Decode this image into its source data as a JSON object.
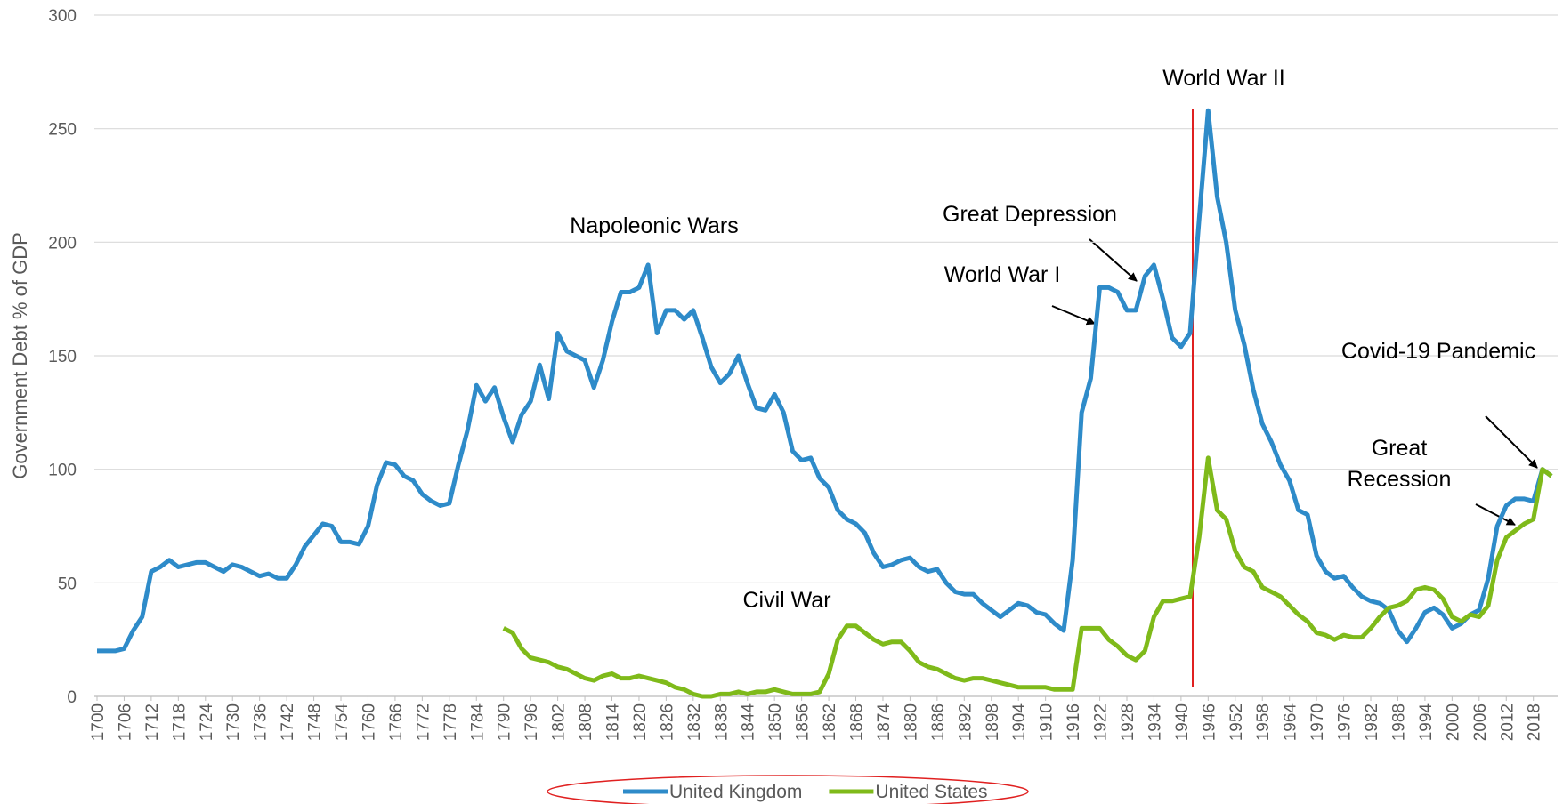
{
  "chart_data": {
    "type": "line",
    "ylabel": "Government Debt % of GDP",
    "x": [
      1700,
      1702,
      1704,
      1706,
      1708,
      1710,
      1712,
      1714,
      1716,
      1718,
      1720,
      1722,
      1724,
      1726,
      1728,
      1730,
      1732,
      1734,
      1736,
      1738,
      1740,
      1742,
      1744,
      1746,
      1748,
      1750,
      1752,
      1754,
      1756,
      1758,
      1760,
      1762,
      1764,
      1766,
      1768,
      1770,
      1772,
      1774,
      1776,
      1778,
      1780,
      1782,
      1784,
      1786,
      1788,
      1790,
      1792,
      1794,
      1796,
      1798,
      1800,
      1802,
      1804,
      1806,
      1808,
      1810,
      1812,
      1814,
      1816,
      1818,
      1820,
      1822,
      1824,
      1826,
      1828,
      1830,
      1832,
      1834,
      1836,
      1838,
      1840,
      1842,
      1844,
      1846,
      1848,
      1850,
      1852,
      1854,
      1856,
      1858,
      1860,
      1862,
      1864,
      1866,
      1868,
      1870,
      1872,
      1874,
      1876,
      1878,
      1880,
      1882,
      1884,
      1886,
      1888,
      1890,
      1892,
      1894,
      1896,
      1898,
      1900,
      1902,
      1904,
      1906,
      1908,
      1910,
      1912,
      1914,
      1916,
      1918,
      1920,
      1922,
      1924,
      1926,
      1928,
      1930,
      1932,
      1934,
      1936,
      1938,
      1940,
      1942,
      1944,
      1946,
      1948,
      1950,
      1952,
      1954,
      1956,
      1958,
      1960,
      1962,
      1964,
      1966,
      1968,
      1970,
      1972,
      1974,
      1976,
      1978,
      1980,
      1982,
      1984,
      1986,
      1988,
      1990,
      1992,
      1994,
      1996,
      1998,
      2000,
      2002,
      2004,
      2006,
      2008,
      2010,
      2012,
      2014,
      2016,
      2018,
      2020,
      2022
    ],
    "series": [
      {
        "name": "United Kingdom",
        "color": "#2e8bc9",
        "values": [
          20,
          20,
          20,
          21,
          29,
          35,
          55,
          57,
          60,
          57,
          58,
          59,
          59,
          57,
          55,
          58,
          57,
          55,
          53,
          54,
          52,
          52,
          58,
          66,
          71,
          76,
          75,
          68,
          68,
          67,
          75,
          93,
          103,
          102,
          97,
          95,
          89,
          86,
          84,
          85,
          102,
          117,
          137,
          130,
          136,
          123,
          112,
          124,
          130,
          146,
          131,
          160,
          152,
          150,
          148,
          136,
          148,
          165,
          178,
          178,
          180,
          190,
          160,
          170,
          170,
          166,
          170,
          158,
          145,
          138,
          142,
          150,
          138,
          127,
          126,
          133,
          125,
          108,
          104,
          105,
          96,
          92,
          82,
          78,
          76,
          72,
          63,
          57,
          58,
          60,
          61,
          57,
          55,
          56,
          50,
          46,
          45,
          45,
          41,
          38,
          35,
          38,
          41,
          40,
          37,
          36,
          32,
          29,
          60,
          125,
          140,
          180,
          180,
          178,
          170,
          170,
          185,
          190,
          175,
          158,
          154,
          160,
          210,
          258,
          220,
          200,
          170,
          155,
          135,
          120,
          112,
          102,
          95,
          82,
          80,
          62,
          55,
          52,
          53,
          48,
          44,
          42,
          41,
          38,
          29,
          24,
          30,
          37,
          39,
          36,
          30,
          32,
          36,
          38,
          52,
          75,
          84,
          87,
          87,
          86,
          100,
          97
        ]
      },
      {
        "name": "United States",
        "color": "#7fba1a",
        "values": [
          null,
          null,
          null,
          null,
          null,
          null,
          null,
          null,
          null,
          null,
          null,
          null,
          null,
          null,
          null,
          null,
          null,
          null,
          null,
          null,
          null,
          null,
          null,
          null,
          null,
          null,
          null,
          null,
          null,
          null,
          null,
          null,
          null,
          null,
          null,
          null,
          null,
          null,
          null,
          null,
          null,
          null,
          null,
          null,
          null,
          30,
          28,
          21,
          17,
          16,
          15,
          13,
          12,
          10,
          8,
          7,
          9,
          10,
          8,
          8,
          9,
          8,
          7,
          6,
          4,
          3,
          1,
          0,
          0,
          1,
          1,
          2,
          1,
          2,
          2,
          3,
          2,
          1,
          1,
          1,
          2,
          10,
          25,
          31,
          31,
          28,
          25,
          23,
          24,
          24,
          20,
          15,
          13,
          12,
          10,
          8,
          7,
          8,
          8,
          7,
          6,
          5,
          4,
          4,
          4,
          4,
          3,
          3,
          3,
          30,
          30,
          30,
          25,
          22,
          18,
          16,
          20,
          35,
          42,
          42,
          43,
          44,
          70,
          105,
          82,
          78,
          64,
          57,
          55,
          48,
          46,
          44,
          40,
          36,
          33,
          28,
          27,
          25,
          27,
          26,
          26,
          30,
          35,
          39,
          40,
          42,
          47,
          48,
          47,
          43,
          35,
          33,
          36,
          35,
          40,
          60,
          70,
          73,
          76,
          78,
          100,
          97
        ]
      }
    ],
    "xlim": [
      1700,
      2022
    ],
    "xticks": [
      1700,
      1706,
      1712,
      1718,
      1724,
      1730,
      1736,
      1742,
      1748,
      1754,
      1760,
      1766,
      1772,
      1778,
      1784,
      1790,
      1796,
      1802,
      1808,
      1814,
      1820,
      1826,
      1832,
      1838,
      1844,
      1850,
      1856,
      1862,
      1868,
      1874,
      1880,
      1886,
      1892,
      1898,
      1904,
      1910,
      1916,
      1922,
      1928,
      1934,
      1940,
      1946,
      1952,
      1958,
      1964,
      1970,
      1976,
      1982,
      1988,
      1994,
      2000,
      2006,
      2012,
      2018
    ],
    "ylim": [
      0,
      300
    ],
    "yticks": [
      0,
      50,
      100,
      150,
      200,
      250,
      300
    ],
    "grid": true,
    "legend": "bottom",
    "annotations": [
      "World War II",
      "Napoleonic Wars",
      "Great Depression",
      "World War I",
      "Covid-19 Pandemic",
      "Great Recession",
      "Civil War"
    ]
  }
}
